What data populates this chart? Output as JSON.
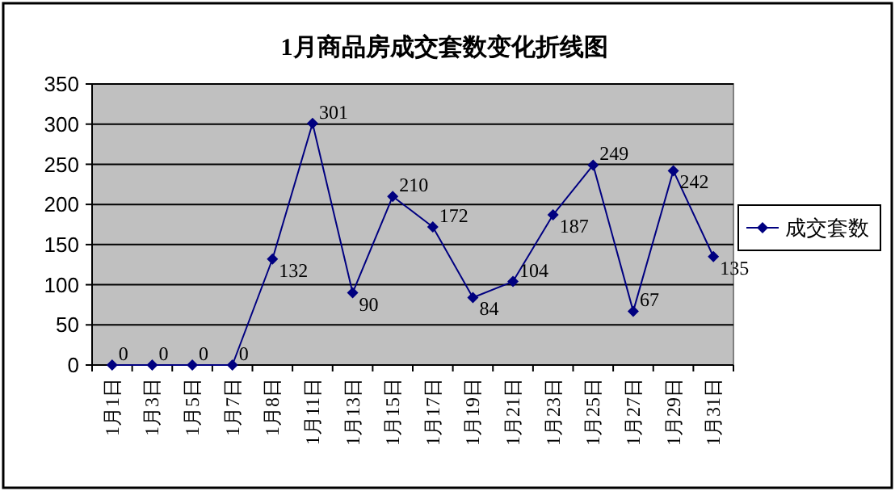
{
  "chart_data": {
    "type": "line",
    "title": "1月商品房成交套数变化折线图",
    "categories": [
      "1月1日",
      "1月3日",
      "1月5日",
      "1月7日",
      "1月8日",
      "1月11日",
      "1月13日",
      "1月15日",
      "1月17日",
      "1月19日",
      "1月21日",
      "1月23日",
      "1月25日",
      "1月27日",
      "1月29日",
      "1月31日"
    ],
    "series": [
      {
        "name": "成交套数",
        "color": "#000080",
        "values": [
          0,
          0,
          0,
          0,
          132,
          301,
          90,
          210,
          172,
          84,
          104,
          187,
          249,
          67,
          242,
          135
        ]
      }
    ],
    "ylim": [
      0,
      350
    ],
    "yticks": [
      0,
      50,
      100,
      150,
      200,
      250,
      300,
      350
    ],
    "grid": "y",
    "legend": "right",
    "marker": "diamond",
    "data_labels": true
  }
}
